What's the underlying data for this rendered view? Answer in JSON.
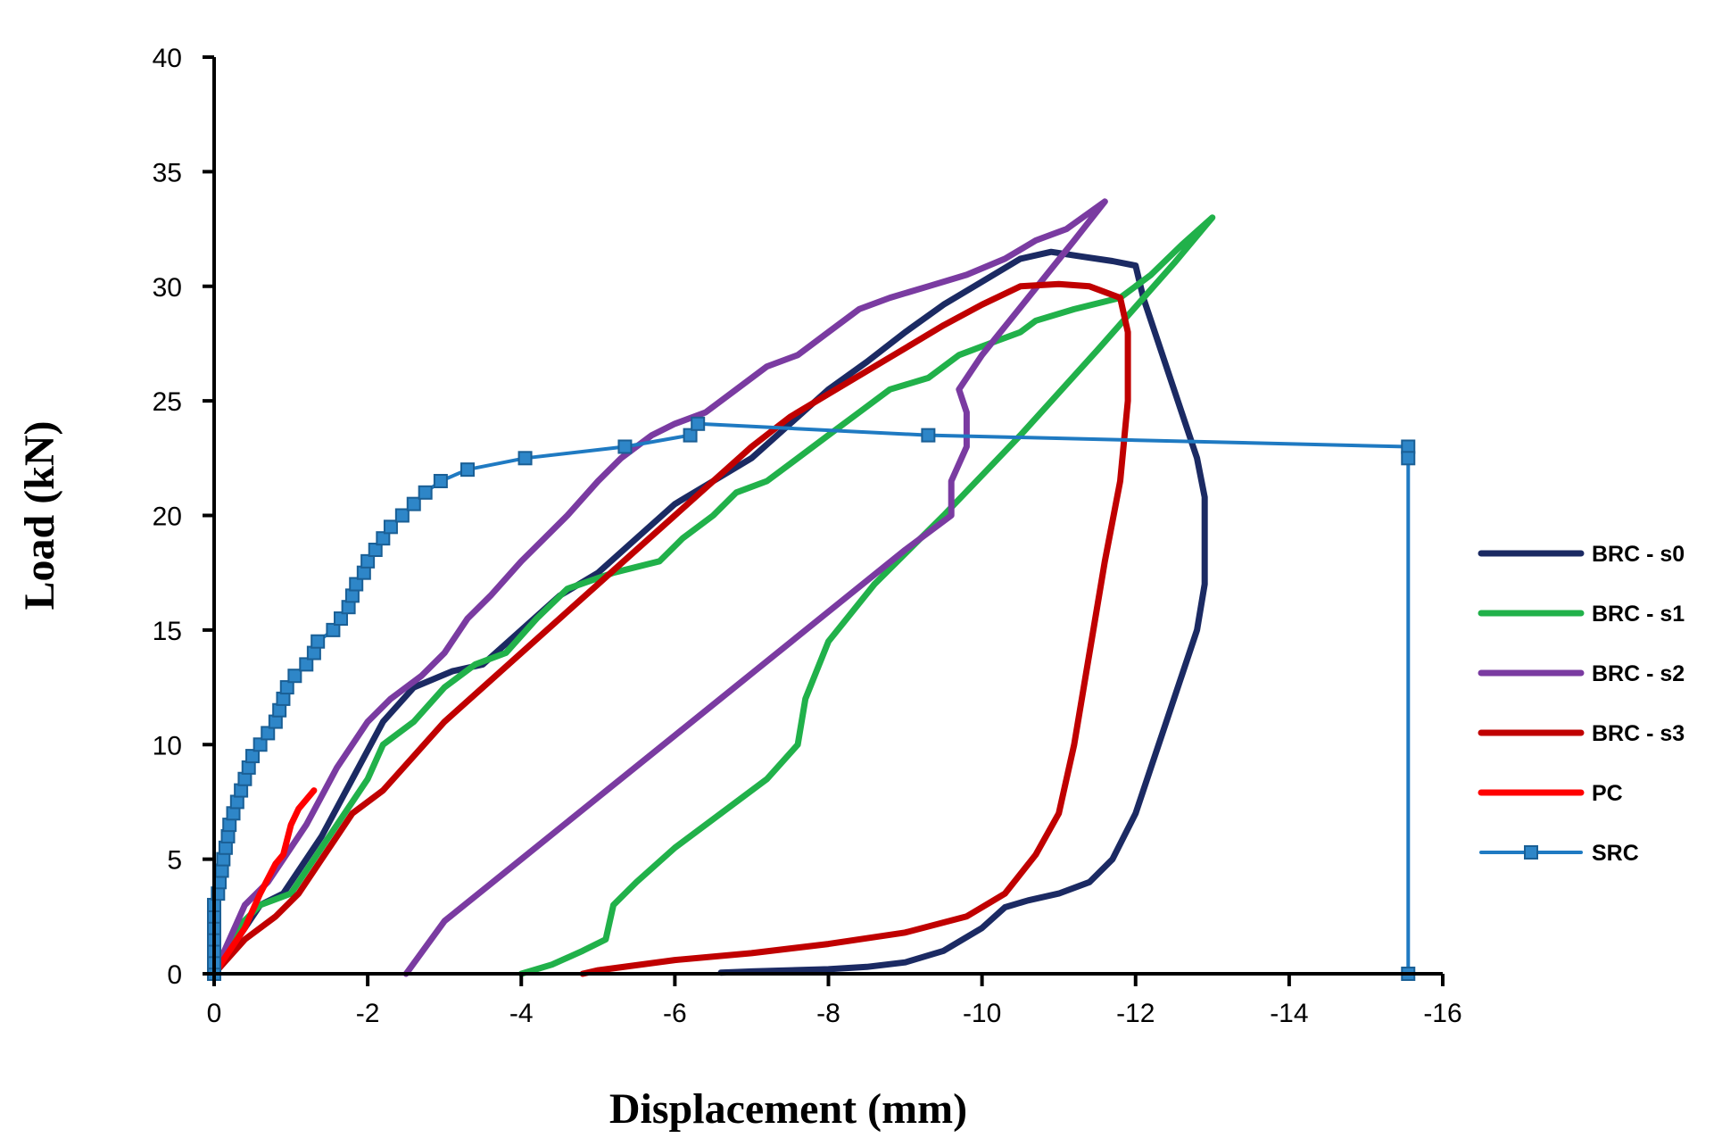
{
  "chart_data": {
    "type": "line",
    "title": "",
    "xlabel": "Displacement  (mm)",
    "ylabel": "Load (kN)",
    "xlim": [
      0,
      -16
    ],
    "ylim": [
      0,
      40
    ],
    "x_ticks": [
      0,
      -2,
      -4,
      -6,
      -8,
      -10,
      -12,
      -14,
      -16
    ],
    "y_ticks": [
      0,
      5,
      10,
      15,
      20,
      25,
      30,
      35,
      40
    ],
    "x_tick_labels": [
      "0",
      "-2",
      "-4",
      "-6",
      "-8",
      "-10",
      "-12",
      "-14",
      "-16"
    ],
    "y_tick_labels": [
      "0",
      "5",
      "10",
      "15",
      "20",
      "25",
      "30",
      "35",
      "40"
    ],
    "grid": false,
    "legend_position": "right",
    "series": [
      {
        "name": "BRC - s0",
        "color": "#1b2a63",
        "marker": "none",
        "points": [
          [
            0,
            0
          ],
          [
            -0.3,
            1.5
          ],
          [
            -0.6,
            3
          ],
          [
            -0.9,
            3.5
          ],
          [
            -1.1,
            4.5
          ],
          [
            -1.4,
            6
          ],
          [
            -1.8,
            8.5
          ],
          [
            -2.2,
            11
          ],
          [
            -2.6,
            12.5
          ],
          [
            -3.1,
            13.2
          ],
          [
            -3.5,
            13.5
          ],
          [
            -4.0,
            15
          ],
          [
            -4.5,
            16.5
          ],
          [
            -5.0,
            17.5
          ],
          [
            -5.5,
            19
          ],
          [
            -6.0,
            20.5
          ],
          [
            -6.5,
            21.5
          ],
          [
            -7.0,
            22.5
          ],
          [
            -7.5,
            24
          ],
          [
            -8.0,
            25.5
          ],
          [
            -8.5,
            26.7
          ],
          [
            -9.0,
            28
          ],
          [
            -9.5,
            29.2
          ],
          [
            -10.0,
            30.2
          ],
          [
            -10.5,
            31.2
          ],
          [
            -10.9,
            31.5
          ],
          [
            -11.3,
            31.3
          ],
          [
            -11.7,
            31.1
          ],
          [
            -12.0,
            30.9
          ],
          [
            -12.1,
            29.5
          ],
          [
            -12.4,
            26.5
          ],
          [
            -12.6,
            24.5
          ],
          [
            -12.8,
            22.5
          ],
          [
            -12.9,
            20.8
          ],
          [
            -12.9,
            19
          ],
          [
            -12.9,
            17
          ],
          [
            -12.8,
            15
          ],
          [
            -12.6,
            13
          ],
          [
            -12.4,
            11
          ],
          [
            -12.2,
            9
          ],
          [
            -12.0,
            7
          ],
          [
            -11.7,
            5
          ],
          [
            -11.4,
            4
          ],
          [
            -11.0,
            3.5
          ],
          [
            -10.6,
            3.2
          ],
          [
            -10.3,
            2.9
          ],
          [
            -10.0,
            2
          ],
          [
            -9.5,
            1
          ],
          [
            -9.0,
            0.5
          ],
          [
            -8.5,
            0.3
          ],
          [
            -8.0,
            0.2
          ],
          [
            -7.0,
            0.1
          ],
          [
            -6.6,
            0.05
          ]
        ]
      },
      {
        "name": "BRC - s1",
        "color": "#21b14a",
        "marker": "none",
        "points": [
          [
            0,
            0
          ],
          [
            -0.3,
            2
          ],
          [
            -0.6,
            3
          ],
          [
            -1.0,
            3.5
          ],
          [
            -1.3,
            5
          ],
          [
            -1.6,
            6.5
          ],
          [
            -2.0,
            8.5
          ],
          [
            -2.2,
            10
          ],
          [
            -2.6,
            11
          ],
          [
            -3.0,
            12.5
          ],
          [
            -3.4,
            13.5
          ],
          [
            -3.8,
            14
          ],
          [
            -4.2,
            15.5
          ],
          [
            -4.6,
            16.8
          ],
          [
            -5.2,
            17.5
          ],
          [
            -5.8,
            18
          ],
          [
            -6.1,
            19
          ],
          [
            -6.5,
            20
          ],
          [
            -6.8,
            21
          ],
          [
            -7.2,
            21.5
          ],
          [
            -7.6,
            22.5
          ],
          [
            -8.0,
            23.5
          ],
          [
            -8.4,
            24.5
          ],
          [
            -8.8,
            25.5
          ],
          [
            -9.3,
            26
          ],
          [
            -9.7,
            27
          ],
          [
            -10.1,
            27.5
          ],
          [
            -10.5,
            28
          ],
          [
            -10.7,
            28.5
          ],
          [
            -11.2,
            29
          ],
          [
            -11.8,
            29.5
          ],
          [
            -12.2,
            30.5
          ],
          [
            -12.6,
            31.8
          ],
          [
            -13.0,
            33
          ],
          [
            -12.5,
            31
          ],
          [
            -11.5,
            27.2
          ],
          [
            -10.5,
            23.5
          ],
          [
            -9.5,
            20
          ],
          [
            -8.6,
            17
          ],
          [
            -8.0,
            14.5
          ],
          [
            -7.7,
            12
          ],
          [
            -7.6,
            10
          ],
          [
            -7.2,
            8.5
          ],
          [
            -6.6,
            7
          ],
          [
            -6.0,
            5.5
          ],
          [
            -5.5,
            4
          ],
          [
            -5.2,
            3
          ],
          [
            -5.1,
            1.5
          ],
          [
            -4.8,
            1
          ],
          [
            -4.4,
            0.4
          ],
          [
            -4.0,
            0
          ]
        ]
      },
      {
        "name": "BRC - s2",
        "color": "#7a3ba1",
        "marker": "none",
        "points": [
          [
            0,
            0
          ],
          [
            -0.2,
            1.5
          ],
          [
            -0.4,
            3
          ],
          [
            -0.7,
            4
          ],
          [
            -0.9,
            5
          ],
          [
            -1.2,
            6.5
          ],
          [
            -1.6,
            9
          ],
          [
            -2.0,
            11
          ],
          [
            -2.3,
            12
          ],
          [
            -2.7,
            13
          ],
          [
            -3.0,
            14
          ],
          [
            -3.3,
            15.5
          ],
          [
            -3.6,
            16.5
          ],
          [
            -4.0,
            18
          ],
          [
            -4.3,
            19
          ],
          [
            -4.6,
            20
          ],
          [
            -5.0,
            21.5
          ],
          [
            -5.3,
            22.5
          ],
          [
            -5.7,
            23.5
          ],
          [
            -6.0,
            24
          ],
          [
            -6.4,
            24.5
          ],
          [
            -6.8,
            25.5
          ],
          [
            -7.2,
            26.5
          ],
          [
            -7.6,
            27
          ],
          [
            -8.0,
            28
          ],
          [
            -8.4,
            29
          ],
          [
            -8.8,
            29.5
          ],
          [
            -9.3,
            30
          ],
          [
            -9.8,
            30.5
          ],
          [
            -10.3,
            31.2
          ],
          [
            -10.7,
            32
          ],
          [
            -11.1,
            32.5
          ],
          [
            -11.6,
            33.7
          ],
          [
            -11.2,
            32
          ],
          [
            -10.6,
            29.5
          ],
          [
            -10.0,
            27
          ],
          [
            -9.7,
            25.5
          ],
          [
            -9.8,
            24.5
          ],
          [
            -9.8,
            23
          ],
          [
            -9.6,
            21.5
          ],
          [
            -9.6,
            20
          ],
          [
            -9.0,
            18.5
          ],
          [
            -8.0,
            15.8
          ],
          [
            -7.0,
            13.1
          ],
          [
            -6.0,
            10.4
          ],
          [
            -5.0,
            7.7
          ],
          [
            -4.0,
            5.0
          ],
          [
            -3.0,
            2.3
          ],
          [
            -2.5,
            0
          ]
        ]
      },
      {
        "name": "BRC - s3",
        "color": "#c00000",
        "marker": "none",
        "points": [
          [
            0,
            0
          ],
          [
            -0.4,
            1.5
          ],
          [
            -0.8,
            2.5
          ],
          [
            -1.1,
            3.5
          ],
          [
            -1.4,
            5
          ],
          [
            -1.8,
            7
          ],
          [
            -2.2,
            8
          ],
          [
            -2.6,
            9.5
          ],
          [
            -3.0,
            11
          ],
          [
            -3.5,
            12.5
          ],
          [
            -4.0,
            14
          ],
          [
            -4.5,
            15.5
          ],
          [
            -5.0,
            17
          ],
          [
            -5.5,
            18.5
          ],
          [
            -6.0,
            20
          ],
          [
            -6.5,
            21.5
          ],
          [
            -7.0,
            23
          ],
          [
            -7.5,
            24.3
          ],
          [
            -8.0,
            25.3
          ],
          [
            -8.5,
            26.3
          ],
          [
            -9.0,
            27.3
          ],
          [
            -9.5,
            28.3
          ],
          [
            -10.0,
            29.2
          ],
          [
            -10.5,
            30
          ],
          [
            -11.0,
            30.1
          ],
          [
            -11.4,
            30
          ],
          [
            -11.8,
            29.5
          ],
          [
            -11.9,
            28
          ],
          [
            -11.9,
            25
          ],
          [
            -11.8,
            21.5
          ],
          [
            -11.6,
            18
          ],
          [
            -11.4,
            14
          ],
          [
            -11.2,
            10
          ],
          [
            -11.0,
            7
          ],
          [
            -10.7,
            5.2
          ],
          [
            -10.3,
            3.5
          ],
          [
            -9.8,
            2.5
          ],
          [
            -9.0,
            1.8
          ],
          [
            -8.0,
            1.3
          ],
          [
            -7.0,
            0.9
          ],
          [
            -6.0,
            0.6
          ],
          [
            -5.0,
            0.15
          ],
          [
            -4.8,
            0
          ]
        ]
      },
      {
        "name": "PC",
        "color": "#ff0000",
        "marker": "none",
        "points": [
          [
            0,
            0
          ],
          [
            -0.2,
            1
          ],
          [
            -0.4,
            2
          ],
          [
            -0.6,
            3.5
          ],
          [
            -0.8,
            4.8
          ],
          [
            -0.9,
            5.2
          ],
          [
            -1.0,
            6.5
          ],
          [
            -1.1,
            7.2
          ],
          [
            -1.2,
            7.6
          ],
          [
            -1.3,
            8
          ]
        ]
      },
      {
        "name": "SRC",
        "color": "#1f7ac2",
        "marker": "square",
        "points": [
          [
            0,
            0
          ],
          [
            0,
            0.5
          ],
          [
            0,
            1
          ],
          [
            0,
            1.5
          ],
          [
            0,
            2
          ],
          [
            0,
            2.5
          ],
          [
            0,
            3
          ],
          [
            -0.05,
            3.5
          ],
          [
            -0.07,
            4
          ],
          [
            -0.1,
            4.5
          ],
          [
            -0.12,
            5
          ],
          [
            -0.15,
            5.5
          ],
          [
            -0.18,
            6
          ],
          [
            -0.2,
            6.5
          ],
          [
            -0.25,
            7
          ],
          [
            -0.3,
            7.5
          ],
          [
            -0.35,
            8
          ],
          [
            -0.4,
            8.5
          ],
          [
            -0.45,
            9
          ],
          [
            -0.5,
            9.5
          ],
          [
            -0.6,
            10
          ],
          [
            -0.7,
            10.5
          ],
          [
            -0.8,
            11
          ],
          [
            -0.85,
            11.5
          ],
          [
            -0.9,
            12
          ],
          [
            -0.95,
            12.5
          ],
          [
            -1.05,
            13
          ],
          [
            -1.2,
            13.5
          ],
          [
            -1.3,
            14
          ],
          [
            -1.35,
            14.5
          ],
          [
            -1.55,
            15
          ],
          [
            -1.65,
            15.5
          ],
          [
            -1.75,
            16
          ],
          [
            -1.8,
            16.5
          ],
          [
            -1.85,
            17
          ],
          [
            -1.95,
            17.5
          ],
          [
            -2.0,
            18
          ],
          [
            -2.1,
            18.5
          ],
          [
            -2.2,
            19
          ],
          [
            -2.3,
            19.5
          ],
          [
            -2.45,
            20
          ],
          [
            -2.6,
            20.5
          ],
          [
            -2.75,
            21
          ],
          [
            -2.95,
            21.5
          ],
          [
            -3.3,
            22
          ],
          [
            -4.05,
            22.5
          ],
          [
            -5.35,
            23
          ],
          [
            -6.2,
            23.5
          ],
          [
            -6.3,
            24
          ],
          [
            -9.3,
            23.5
          ],
          [
            -15.55,
            23
          ],
          [
            -15.55,
            22.5
          ],
          [
            -15.55,
            0
          ]
        ]
      }
    ]
  }
}
